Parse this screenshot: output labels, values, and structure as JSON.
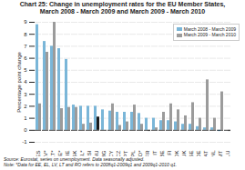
{
  "chart_data": {
    "type": "bar",
    "title": "Chart 25: Change in unemployment rates for the EU Member States,\nMarch 2008 - March 2009 and March 2009 - March 2010",
    "ylabel": "Percentage point change",
    "annotations": [
      "Source: Eurostat, series on unemployment. Data seasonally adjusted.",
      "Note: *Data for EE, EL, LV, LT and RO refers to 2008q1-2009q1 and 2009q1-2010 q1."
    ],
    "categories": [
      "ES",
      "LV*",
      "LT*",
      "EE*",
      "IE",
      "SK",
      "EL*",
      "SI",
      "HU",
      "BG",
      "CY",
      "CZ",
      "PT",
      "PL",
      "RO*",
      "FR",
      "IT",
      "BE",
      "FI",
      "DK",
      "UK",
      "SE",
      "DE",
      "AT",
      "NL",
      "MT",
      "LU"
    ],
    "series": [
      {
        "name": "March 2008 - March 2009",
        "color": "#7ab6d8",
        "values": [
          8.8,
          7.4,
          7.0,
          6.8,
          5.9,
          2.1,
          2.0,
          2.0,
          2.0,
          1.7,
          1.6,
          1.5,
          1.5,
          1.5,
          1.4,
          1.0,
          1.0,
          0.8,
          0.8,
          0.7,
          0.5,
          0.5,
          0.3,
          0.2,
          0.2,
          -0.1,
          0.0
        ]
      },
      {
        "name": "March 2009 - March 2010",
        "color": "#9b9b9b",
        "colors": [
          "#9b9b9b",
          "#9b9b9b",
          "#9b9b9b",
          "#9b9b9b",
          "#9b9b9b",
          "#9b9b9b",
          "#9b9b9b",
          "#9b9b9b",
          "#1a1a1a",
          "#9b9b9b",
          "#9b9b9b",
          "#9b9b9b",
          "#9b9b9b",
          "#9b9b9b",
          "#9b9b9b",
          "#9b9b9b",
          "#9b9b9b",
          "#9b9b9b",
          "#9b9b9b",
          "#9b9b9b",
          "#9b9b9b",
          "#9b9b9b",
          "#9b9b9b",
          "#9b9b9b",
          "#9b9b9b",
          "#9b9b9b",
          "#9b9b9b"
        ],
        "values": [
          2.2,
          6.5,
          9.0,
          1.8,
          1.9,
          1.9,
          0.5,
          0.6,
          1.1,
          0.0,
          2.2,
          0.4,
          0.7,
          2.1,
          0.5,
          -0.1,
          0.2,
          1.5,
          2.2,
          1.7,
          1.2,
          2.3,
          1.0,
          4.2,
          1.0,
          3.2,
          -0.1
        ]
      }
    ],
    "ylim": [
      -1,
      9
    ],
    "yticks": [
      -1,
      0,
      1,
      2,
      3,
      4,
      5,
      6,
      7,
      8,
      9
    ],
    "grid": true,
    "legend": "upper right"
  }
}
